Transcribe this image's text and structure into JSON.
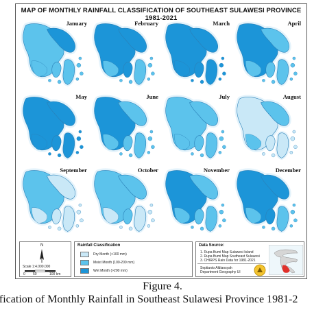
{
  "map": {
    "title": "MAP OF MONTHLY RAINFALL CLASSIFICATION OF SOUTHEAST SULAWESI PROVINCE 1981-2021",
    "panels": [
      {
        "month": "January",
        "class": "mostly-moist"
      },
      {
        "month": "February",
        "class": "mostly-wet"
      },
      {
        "month": "March",
        "class": "wet"
      },
      {
        "month": "April",
        "class": "mixed"
      },
      {
        "month": "May",
        "class": "wet"
      },
      {
        "month": "June",
        "class": "mixed"
      },
      {
        "month": "July",
        "class": "moist"
      },
      {
        "month": "August",
        "class": "dry-mixed"
      },
      {
        "month": "September",
        "class": "dry"
      },
      {
        "month": "October",
        "class": "moist-dry"
      },
      {
        "month": "November",
        "class": "mixed"
      },
      {
        "month": "December",
        "class": "mostly-wet"
      }
    ],
    "colors": {
      "dry": "#c9e8f7",
      "moist": "#5cc3ec",
      "wet": "#1c95d8",
      "land_outline": "#2a80b8",
      "halo": "#e4f3fb"
    }
  },
  "legend": {
    "north_label": "N",
    "scale_label": "Scale 1:4.000.000",
    "scale_ticks": [
      "0",
      "50",
      "100 km"
    ],
    "classification_title": "Rainfall Classification",
    "items": [
      {
        "label": "Dry Month (<100 mm)",
        "color": "#c9e8f7"
      },
      {
        "label": "Moist Month (100-200 mm)",
        "color": "#5cc3ec"
      },
      {
        "label": "Wet Month (>200 mm)",
        "color": "#1c95d8"
      }
    ],
    "source_title": "Data Source:",
    "sources": [
      "1. Rupa Bumi Map Sulawesi Island",
      "2. Rupa Bumi Map Southeast Sulawesi",
      "3. CHIRPS Rain Data for 1981-2021"
    ],
    "author": "Septianto Aldiansyah",
    "department": "Department Geography UI"
  },
  "caption": {
    "figure": "Figure 4.",
    "text": "ssification of Monthly Rainfall in Southeast Sulawesi Province 1981-2"
  }
}
